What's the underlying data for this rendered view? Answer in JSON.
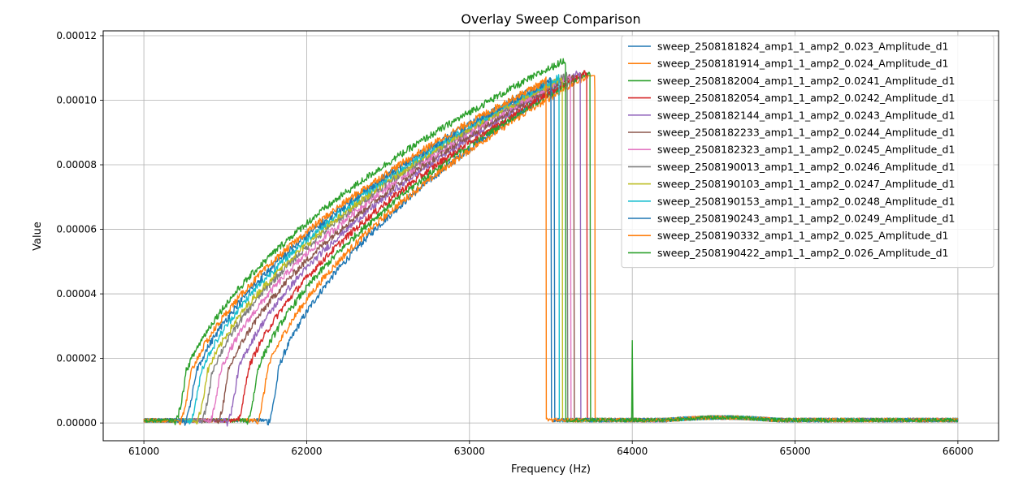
{
  "chart_data": {
    "type": "line",
    "title": "Overlay Sweep Comparison",
    "xlabel": "Frequency (Hz)",
    "ylabel": "Value",
    "xlim": [
      60750,
      66250
    ],
    "ylim": [
      -5.5e-06,
      0.0001215
    ],
    "x_ticks": [
      61000,
      62000,
      63000,
      64000,
      65000,
      66000
    ],
    "x_tick_labels": [
      "61000",
      "62000",
      "63000",
      "64000",
      "65000",
      "66000"
    ],
    "y_ticks": [
      0,
      2e-05,
      4e-05,
      6e-05,
      8e-05,
      0.0001,
      0.00012
    ],
    "y_tick_labels": [
      "0.00000",
      "0.00002",
      "0.00004",
      "0.00006",
      "0.00008",
      "0.00010",
      "0.00012"
    ],
    "grid": true,
    "legend_position": "upper-right",
    "series": [
      {
        "name": "sweep_2508181824_amp1_1_amp2_0.023_Amplitude_d1",
        "color": "#1f77b4",
        "onset": 61760,
        "drop": 63520,
        "peak": 0.000107,
        "bump": 0.0
      },
      {
        "name": "sweep_2508181914_amp1_1_amp2_0.024_Amplitude_d1",
        "color": "#ff7f0e",
        "onset": 61690,
        "drop": 63770,
        "peak": 0.0001055,
        "bump": 0.0
      },
      {
        "name": "sweep_2508182004_amp1_1_amp2_0.0241_Amplitude_d1",
        "color": "#2ca02c",
        "onset": 61630,
        "drop": 63740,
        "peak": 0.0001065,
        "bump": 0.0
      },
      {
        "name": "sweep_2508182054_amp1_1_amp2_0.0242_Amplitude_d1",
        "color": "#d62728",
        "onset": 61570,
        "drop": 63720,
        "peak": 0.000107,
        "bump": 0.0
      },
      {
        "name": "sweep_2508182144_amp1_1_amp2_0.0243_Amplitude_d1",
        "color": "#9467bd",
        "onset": 61510,
        "drop": 63680,
        "peak": 0.000108,
        "bump": 0.0
      },
      {
        "name": "sweep_2508182233_amp1_1_amp2_0.0244_Amplitude_d1",
        "color": "#8c564b",
        "onset": 61450,
        "drop": 63640,
        "peak": 0.000108,
        "bump": 0.0
      },
      {
        "name": "sweep_2508182323_amp1_1_amp2_0.0245_Amplitude_d1",
        "color": "#e377c2",
        "onset": 61400,
        "drop": 63620,
        "peak": 0.0001085,
        "bump": 0.0
      },
      {
        "name": "sweep_2508190013_amp1_1_amp2_0.0246_Amplitude_d1",
        "color": "#7f7f7f",
        "onset": 61350,
        "drop": 63600,
        "peak": 0.000109,
        "bump": 0.0
      },
      {
        "name": "sweep_2508190103_amp1_1_amp2_0.0247_Amplitude_d1",
        "color": "#bcbd22",
        "onset": 61320,
        "drop": 63570,
        "peak": 0.000109,
        "bump": 0.0
      },
      {
        "name": "sweep_2508190153_amp1_1_amp2_0.0248_Amplitude_d1",
        "color": "#17becf",
        "onset": 61280,
        "drop": 63550,
        "peak": 0.0001095,
        "bump": 0.0
      },
      {
        "name": "sweep_2508190243_amp1_1_amp2_0.0249_Amplitude_d1",
        "color": "#1f77b4",
        "onset": 61250,
        "drop": 63500,
        "peak": 0.00011,
        "bump": 0.0
      },
      {
        "name": "sweep_2508190332_amp1_1_amp2_0.025_Amplitude_d1",
        "color": "#ff7f0e",
        "onset": 61220,
        "drop": 63470,
        "peak": 0.0001105,
        "bump": 0.0
      },
      {
        "name": "sweep_2508190422_amp1_1_amp2_0.026_Amplitude_d1",
        "color": "#2ca02c",
        "onset": 61190,
        "drop": 63590,
        "peak": 0.000114,
        "bump": 2.55e-05
      }
    ]
  }
}
